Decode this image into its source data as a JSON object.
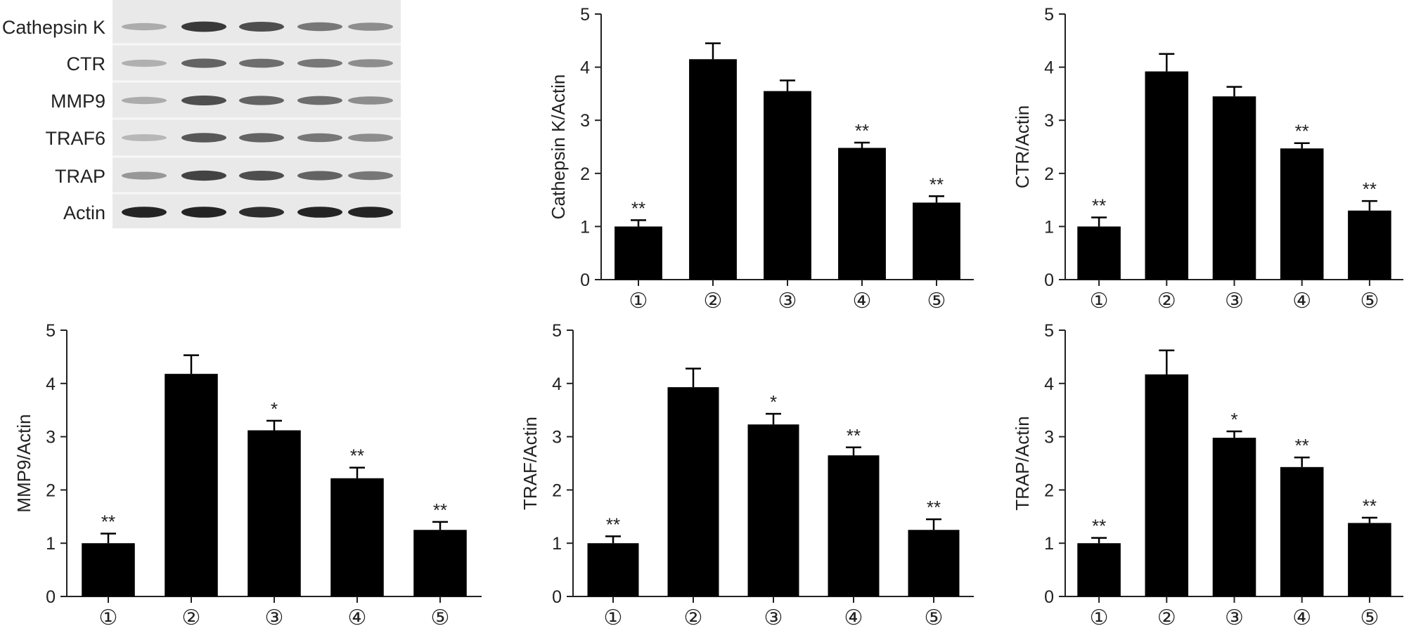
{
  "blot": {
    "labels": [
      "Cathepsin K",
      "CTR",
      "MMP9",
      "TRAF6",
      "TRAP",
      "Actin"
    ],
    "band_intensity": [
      [
        0.3,
        0.85,
        0.75,
        0.55,
        0.45
      ],
      [
        0.28,
        0.65,
        0.6,
        0.55,
        0.45
      ],
      [
        0.3,
        0.75,
        0.65,
        0.6,
        0.45
      ],
      [
        0.25,
        0.7,
        0.65,
        0.55,
        0.45
      ],
      [
        0.4,
        0.8,
        0.75,
        0.65,
        0.55
      ],
      [
        0.95,
        0.95,
        0.9,
        0.95,
        0.95
      ]
    ]
  },
  "chart_data": [
    {
      "type": "bar",
      "categories": [
        "①",
        "②",
        "③",
        "④",
        "⑤"
      ],
      "values": [
        1.0,
        4.15,
        3.55,
        2.48,
        1.45
      ],
      "errors": [
        0.12,
        0.3,
        0.2,
        0.1,
        0.12
      ],
      "significance": [
        "**",
        "",
        "",
        "**",
        "**"
      ],
      "ylabel": "Cathepsin K/Actin",
      "ylim": [
        0,
        5
      ],
      "yticks": [
        "0",
        "1",
        "2",
        "3",
        "4",
        "5"
      ]
    },
    {
      "type": "bar",
      "categories": [
        "①",
        "②",
        "③",
        "④",
        "⑤"
      ],
      "values": [
        1.0,
        3.92,
        3.45,
        2.47,
        1.3
      ],
      "errors": [
        0.17,
        0.33,
        0.18,
        0.1,
        0.18
      ],
      "significance": [
        "**",
        "",
        "",
        "**",
        "**"
      ],
      "ylabel": "CTR/Actin",
      "ylim": [
        0,
        5
      ],
      "yticks": [
        "0",
        "1",
        "2",
        "3",
        "4",
        "5"
      ]
    },
    {
      "type": "bar",
      "categories": [
        "①",
        "②",
        "③",
        "④",
        "⑤"
      ],
      "values": [
        1.0,
        4.18,
        3.12,
        2.22,
        1.25
      ],
      "errors": [
        0.18,
        0.35,
        0.18,
        0.2,
        0.15
      ],
      "significance": [
        "**",
        "",
        "*",
        "**",
        "**"
      ],
      "ylabel": "MMP9/Actin",
      "ylim": [
        0,
        5
      ],
      "yticks": [
        "0",
        "1",
        "2",
        "3",
        "4",
        "5"
      ]
    },
    {
      "type": "bar",
      "categories": [
        "①",
        "②",
        "③",
        "④",
        "⑤"
      ],
      "values": [
        1.0,
        3.93,
        3.23,
        2.65,
        1.25
      ],
      "errors": [
        0.13,
        0.35,
        0.2,
        0.15,
        0.2
      ],
      "significance": [
        "**",
        "",
        "*",
        "**",
        "**"
      ],
      "ylabel": "TRAF/Actin",
      "ylim": [
        0,
        5
      ],
      "yticks": [
        "0",
        "1",
        "2",
        "3",
        "4",
        "5"
      ]
    },
    {
      "type": "bar",
      "categories": [
        "①",
        "②",
        "③",
        "④",
        "⑤"
      ],
      "values": [
        1.0,
        4.17,
        2.98,
        2.43,
        1.38
      ],
      "errors": [
        0.1,
        0.45,
        0.12,
        0.18,
        0.1
      ],
      "significance": [
        "**",
        "",
        "*",
        "**",
        "**"
      ],
      "ylabel": "TRAP/Actin",
      "ylim": [
        0,
        5
      ],
      "yticks": [
        "0",
        "1",
        "2",
        "3",
        "4",
        "5"
      ]
    }
  ]
}
